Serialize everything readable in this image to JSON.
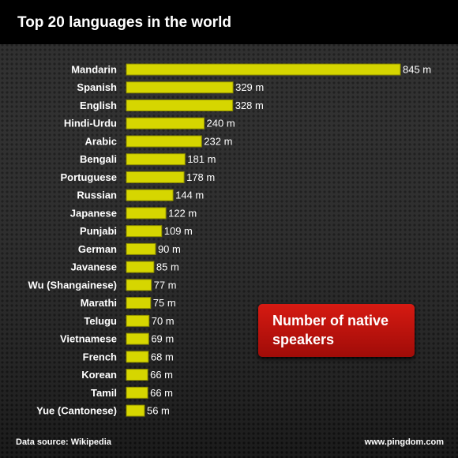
{
  "chart_data": {
    "type": "barh",
    "title": "Top 20 languages in the world",
    "categories": [
      "Mandarin",
      "Spanish",
      "English",
      "Hindi-Urdu",
      "Arabic",
      "Bengali",
      "Portuguese",
      "Russian",
      "Japanese",
      "Punjabi",
      "German",
      "Javanese",
      "Wu (Shangainese)",
      "Marathi",
      "Telugu",
      "Vietnamese",
      "French",
      "Korean",
      "Tamil",
      "Yue (Cantonese)"
    ],
    "values": [
      845,
      329,
      328,
      240,
      232,
      181,
      178,
      144,
      122,
      109,
      90,
      85,
      77,
      75,
      70,
      69,
      68,
      66,
      66,
      56
    ],
    "value_labels": [
      "845 m",
      "329 m",
      "328 m",
      "240 m",
      "232 m",
      "181 m",
      "178 m",
      "144 m",
      "122 m",
      "109 m",
      "90 m",
      "85 m",
      "77 m",
      "75 m",
      "70 m",
      "69 m",
      "68 m",
      "66 m",
      "66 m",
      "56 m"
    ],
    "color": "#d6d600",
    "xlim": [
      0,
      845
    ],
    "annotation": "Number of native speakers",
    "source": "Data source: Wikipedia",
    "credit": "www.pingdom.com"
  }
}
